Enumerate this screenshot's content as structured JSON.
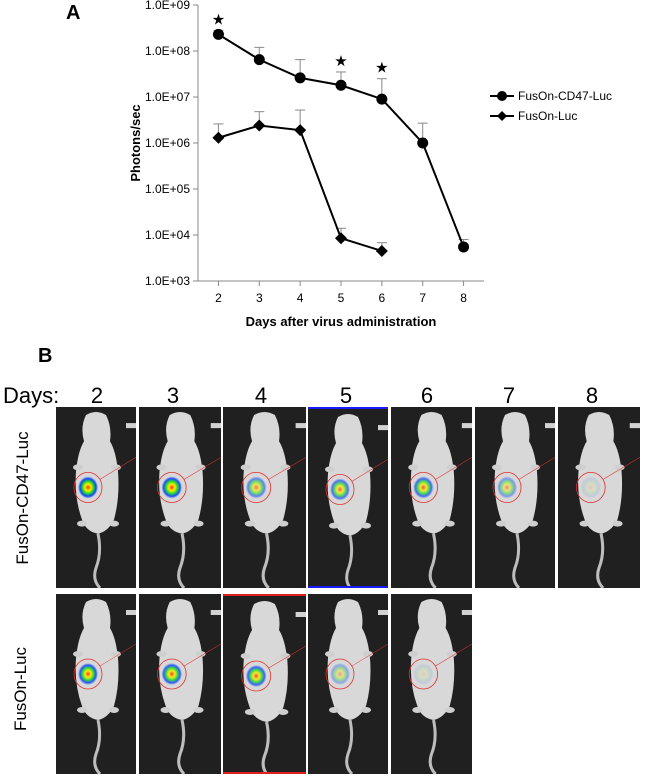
{
  "panels": {
    "a": "A",
    "b": "B"
  },
  "chart_data": {
    "type": "line",
    "xlabel": "Days after virus administration",
    "ylabel": "Photons/sec",
    "x_ticks": [
      2,
      3,
      4,
      5,
      6,
      7,
      8
    ],
    "y_ticks": [
      "1.0E+03",
      "1.0E+04",
      "1.0E+05",
      "1.0E+06",
      "1.0E+07",
      "1.0E+08",
      "1.0E+09"
    ],
    "y_scale": "log",
    "ylim": [
      1000,
      1000000000
    ],
    "xlim": [
      1.5,
      8.5
    ],
    "legend_position": "right",
    "significance_marker": "★",
    "significant_days": [
      2,
      5,
      6
    ],
    "series": [
      {
        "name": "FusOn-CD47-Luc",
        "marker": "circle",
        "x": [
          2,
          3,
          4,
          5,
          6,
          7,
          8
        ],
        "y": [
          230000000,
          65000000,
          26000000,
          18000000,
          9000000,
          1000000,
          5500
        ],
        "err_upper": [
          280000000,
          120000000,
          65000000,
          35000000,
          25000000,
          2700000,
          8000
        ]
      },
      {
        "name": "FusOn-Luc",
        "marker": "diamond",
        "x": [
          2,
          3,
          4,
          5,
          6
        ],
        "y": [
          1300000,
          2400000,
          1900000,
          8500,
          4500
        ],
        "err_upper": [
          2600000,
          4800000,
          5200000,
          14000,
          6800
        ]
      }
    ]
  },
  "panel_b": {
    "days_label": "Days:",
    "days": [
      "2",
      "3",
      "4",
      "5",
      "6",
      "7",
      "8"
    ],
    "rows": [
      {
        "label": "FusOn-CD47-Luc",
        "images": [
          {
            "day": "2",
            "signal": 1.0,
            "border": "none"
          },
          {
            "day": "3",
            "signal": 0.95,
            "border": "none"
          },
          {
            "day": "4",
            "signal": 0.6,
            "border": "none"
          },
          {
            "day": "5",
            "signal": 0.7,
            "border": "#1a1aff"
          },
          {
            "day": "6",
            "signal": 0.75,
            "border": "none"
          },
          {
            "day": "7",
            "signal": 0.45,
            "border": "none"
          },
          {
            "day": "8",
            "signal": 0.1,
            "border": "none"
          }
        ]
      },
      {
        "label": "FusOn-Luc",
        "images": [
          {
            "day": "2",
            "signal": 0.9,
            "border": "none"
          },
          {
            "day": "3",
            "signal": 0.85,
            "border": "none"
          },
          {
            "day": "4",
            "signal": 0.8,
            "border": "#e02020"
          },
          {
            "day": "5",
            "signal": 0.35,
            "border": "none"
          },
          {
            "day": "6",
            "signal": 0.1,
            "border": "none"
          }
        ]
      }
    ]
  }
}
